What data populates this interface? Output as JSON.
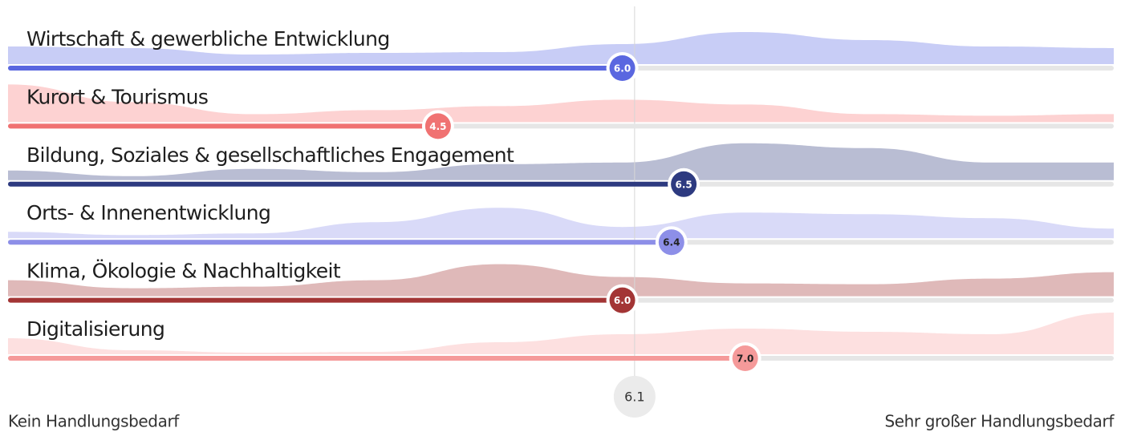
{
  "chart_data": {
    "type": "ridge-bar",
    "xlim": [
      1,
      10
    ],
    "average": 6.1,
    "left_label": "Kein Handlungsbedarf",
    "right_label": "Sehr großer Handlungsbedarf",
    "series": [
      {
        "name": "Wirtschaft & gewerbliche Entwicklung",
        "color": "#5a67e0",
        "area_color": "#c8cdf6",
        "value": 6.0,
        "value_label": "6.0",
        "distribution": [
          22,
          20,
          12,
          14,
          15,
          25,
          40,
          30,
          22,
          20
        ]
      },
      {
        "name": "Kurort & Tourismus",
        "color": "#f07272",
        "area_color": "#fdd2d2",
        "value": 4.5,
        "value_label": "4.5",
        "distribution": [
          47,
          25,
          10,
          15,
          20,
          28,
          22,
          10,
          8,
          10
        ]
      },
      {
        "name": "Bildung, Soziales & gesellschaftliches Engagement",
        "color": "#2d3a80",
        "area_color": "#b9bdd3",
        "value": 6.5,
        "value_label": "6.5",
        "distribution": [
          12,
          5,
          14,
          10,
          20,
          22,
          46,
          40,
          22,
          22
        ]
      },
      {
        "name": "Orts- & Innenentwicklung",
        "color": "#8d8fe8",
        "area_color": "#d9daf8",
        "value": 6.4,
        "value_label": "6.4",
        "distribution": [
          8,
          4,
          6,
          20,
          38,
          14,
          32,
          30,
          25,
          12
        ]
      },
      {
        "name": "Klima, Ökologie & Nachhaltigkeit",
        "color": "#a33535",
        "area_color": "#dfb9b9",
        "value": 6.0,
        "value_label": "6.0",
        "distribution": [
          20,
          10,
          12,
          20,
          40,
          24,
          16,
          15,
          22,
          30
        ]
      },
      {
        "name": "Digitalisierung",
        "color": "#f59a9a",
        "area_color": "#fde0e0",
        "value": 7.0,
        "value_label": "7.0",
        "distribution": [
          20,
          5,
          2,
          3,
          15,
          25,
          32,
          28,
          25,
          52
        ]
      }
    ]
  }
}
